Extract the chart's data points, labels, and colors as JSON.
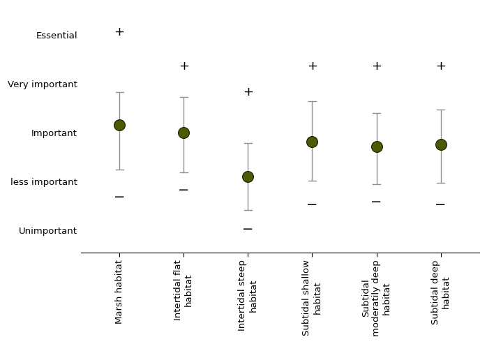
{
  "categories": [
    "Marsh habitat",
    "Intertidal flat\nhabitat",
    "Intertidal steep\nhabitat",
    "Subtidal shallow\nhabitat",
    "Subtidal\nmoderatily deep\nhabitat",
    "Subtidal deep\nhabitat"
  ],
  "means": [
    3.15,
    3.0,
    2.1,
    2.82,
    2.72,
    2.75
  ],
  "std_upper": [
    0.68,
    0.72,
    0.68,
    0.82,
    0.68,
    0.72
  ],
  "std_lower": [
    0.9,
    0.82,
    0.68,
    0.8,
    0.78,
    0.78
  ],
  "max_vals": [
    5.05,
    4.35,
    3.82,
    4.35,
    4.35,
    4.35
  ],
  "min_vals": [
    1.68,
    1.82,
    1.02,
    1.52,
    1.58,
    1.52
  ],
  "ytick_positions": [
    1,
    2,
    3,
    4,
    5
  ],
  "ytick_labels": [
    "Unimportant",
    "less important",
    "Important",
    "Very important",
    "Essential"
  ],
  "dot_color": "#4d5a00",
  "dot_edgecolor": "#1a1a00",
  "errorbar_color": "#909090",
  "plus_minus_color": "#000000",
  "background_color": "#ffffff",
  "dot_size": 130,
  "ylim": [
    0.55,
    5.55
  ],
  "xlim": [
    -0.6,
    5.6
  ]
}
